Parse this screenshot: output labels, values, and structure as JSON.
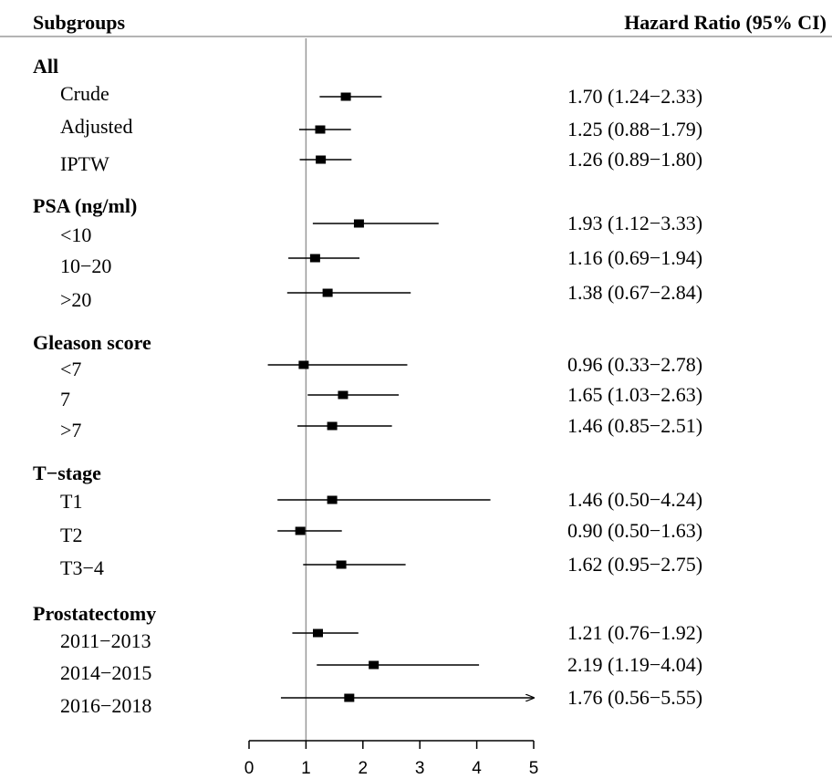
{
  "header": {
    "subgroups_label": "Subgroups",
    "hr_label": "Hazard Ratio (95% CI)"
  },
  "chart_data": {
    "type": "forest",
    "xlim": [
      0,
      5
    ],
    "xticks": [
      "0",
      "1",
      "2",
      "3",
      "4",
      "5"
    ],
    "reference_line": 1,
    "grid": false,
    "groups": [
      {
        "title": "All",
        "rows": [
          {
            "label": "Crude",
            "hr": 1.7,
            "lo": 1.24,
            "hi": 2.33,
            "ci_text": "1.70  (1.24−2.33)",
            "arrow": false
          },
          {
            "label": "Adjusted",
            "hr": 1.25,
            "lo": 0.88,
            "hi": 1.79,
            "ci_text": "1.25  (0.88−1.79)",
            "arrow": false
          },
          {
            "label": "IPTW",
            "hr": 1.26,
            "lo": 0.89,
            "hi": 1.8,
            "ci_text": "1.26 (0.89−1.80)",
            "arrow": false
          }
        ]
      },
      {
        "title": "PSA (ng/ml)",
        "rows": [
          {
            "label": "<10",
            "hr": 1.93,
            "lo": 1.12,
            "hi": 3.33,
            "ci_text": "1.93  (1.12−3.33)",
            "arrow": false
          },
          {
            "label": "10−20",
            "hr": 1.16,
            "lo": 0.69,
            "hi": 1.94,
            "ci_text": "1.16  (0.69−1.94)",
            "arrow": false
          },
          {
            "label": ">20",
            "hr": 1.38,
            "lo": 0.67,
            "hi": 2.84,
            "ci_text": "1.38 (0.67−2.84)",
            "arrow": false
          }
        ]
      },
      {
        "title": "Gleason score",
        "rows": [
          {
            "label": "<7",
            "hr": 0.96,
            "lo": 0.33,
            "hi": 2.78,
            "ci_text": "0.96  (0.33−2.78)",
            "arrow": false
          },
          {
            "label": "7",
            "hr": 1.65,
            "lo": 1.03,
            "hi": 2.63,
            "ci_text": "1.65  (1.03−2.63)",
            "arrow": false
          },
          {
            "label": ">7",
            "hr": 1.46,
            "lo": 0.85,
            "hi": 2.51,
            "ci_text": "1.46 (0.85−2.51)",
            "arrow": false
          }
        ]
      },
      {
        "title": "T−stage",
        "rows": [
          {
            "label": "T1",
            "hr": 1.46,
            "lo": 0.5,
            "hi": 4.24,
            "ci_text": "1.46  (0.50−4.24)",
            "arrow": false
          },
          {
            "label": "T2",
            "hr": 0.9,
            "lo": 0.5,
            "hi": 1.63,
            "ci_text": "0.90  (0.50−1.63)",
            "arrow": false
          },
          {
            "label": "T3−4",
            "hr": 1.62,
            "lo": 0.95,
            "hi": 2.75,
            "ci_text": "1.62 (0.95−2.75)",
            "arrow": false
          }
        ]
      },
      {
        "title": "Prostatectomy",
        "rows": [
          {
            "label": "2011−2013",
            "hr": 1.21,
            "lo": 0.76,
            "hi": 1.92,
            "ci_text": "1.21  (0.76−1.92)",
            "arrow": false
          },
          {
            "label": "2014−2015",
            "hr": 2.19,
            "lo": 1.19,
            "hi": 4.04,
            "ci_text": "2.19  (1.19−4.04)",
            "arrow": false
          },
          {
            "label": "2016−2018",
            "hr": 1.76,
            "lo": 0.56,
            "hi": 5.55,
            "ci_text": "1.76 (0.56−5.55)",
            "arrow": true
          }
        ]
      }
    ]
  }
}
